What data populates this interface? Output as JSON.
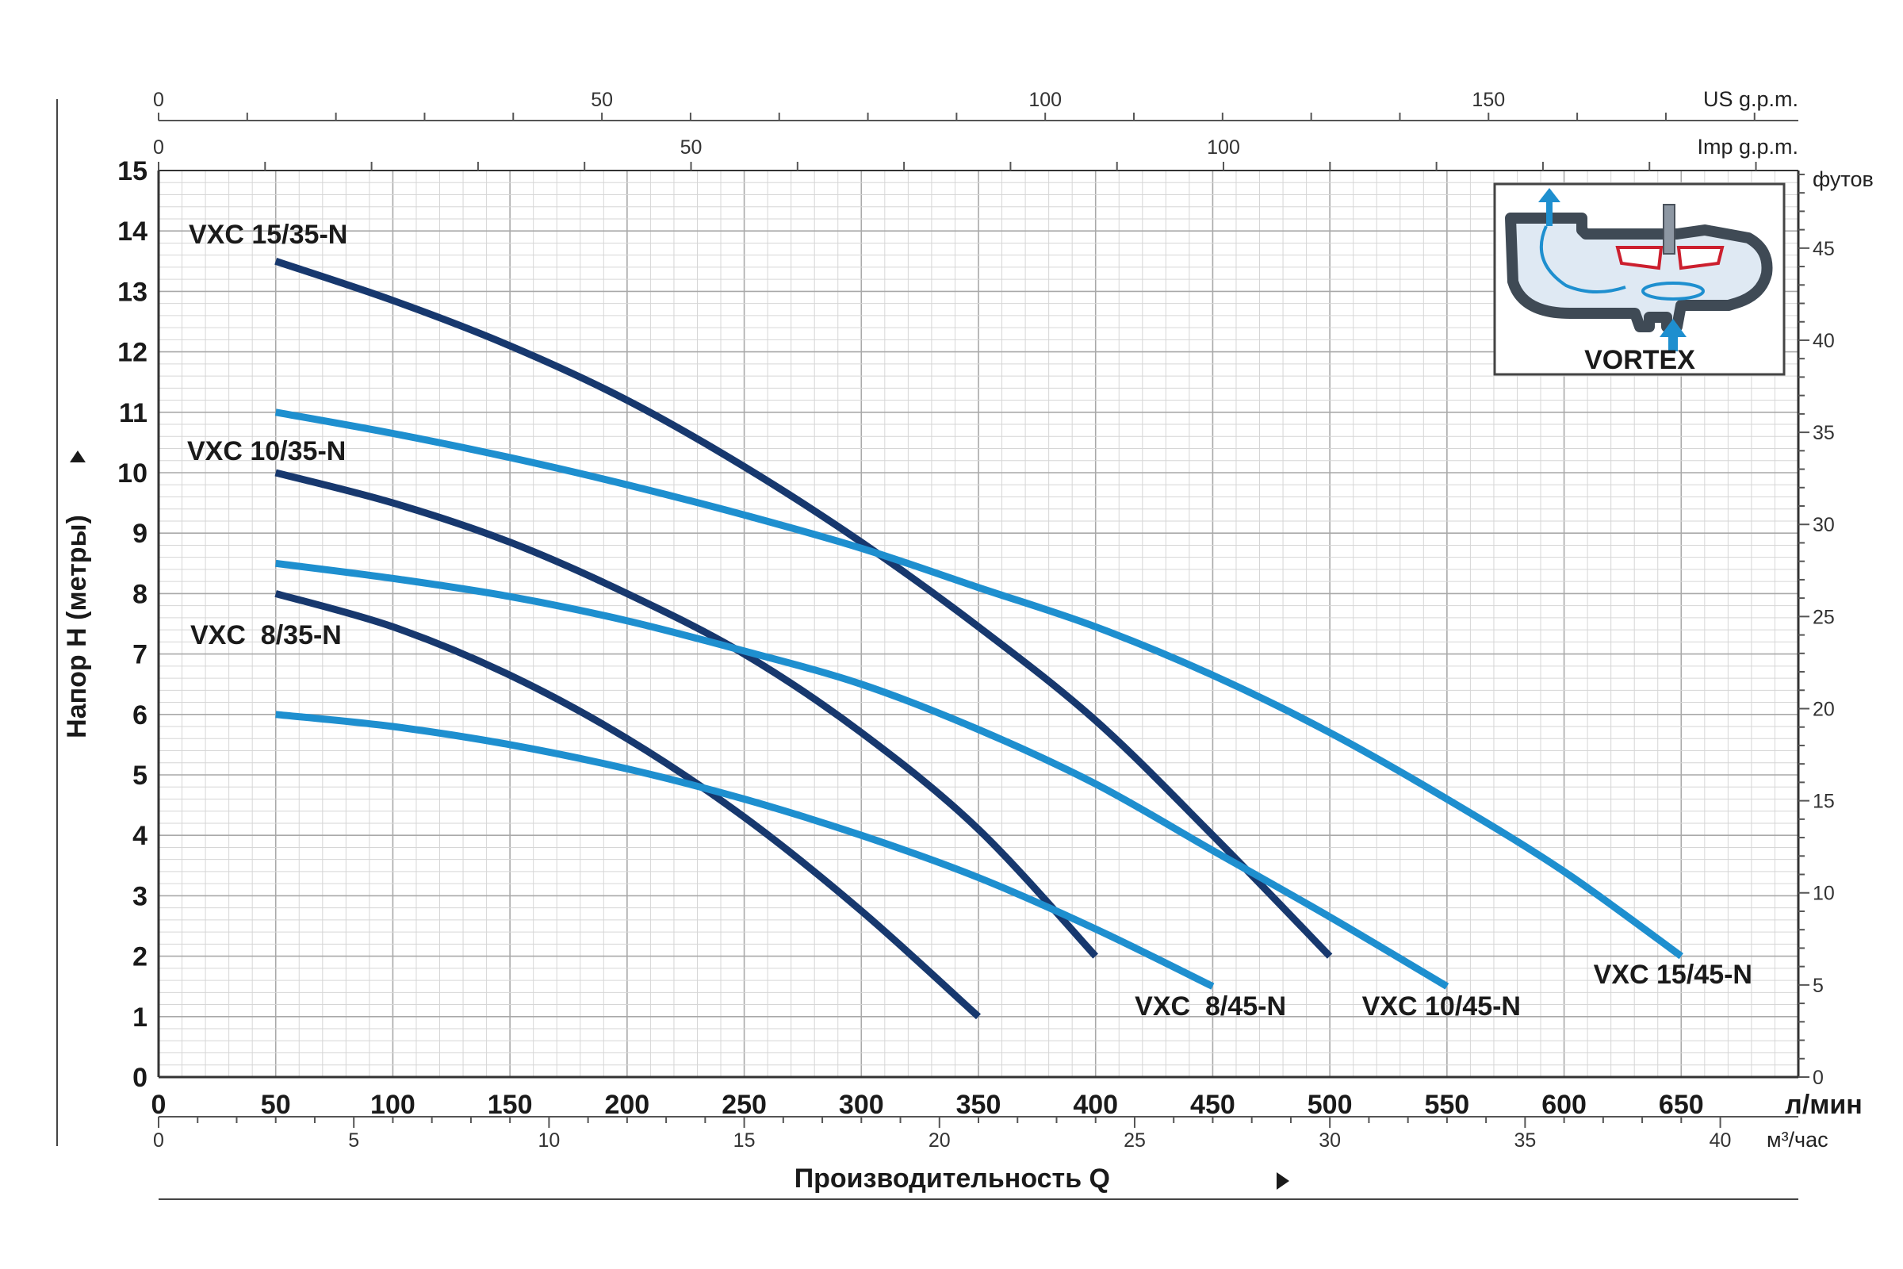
{
  "chart_data": {
    "type": "line",
    "xlabel": "Производительность  Q",
    "ylabel": "Напор H (метры)",
    "x_unit": "л/мин",
    "xlim": [
      0,
      700
    ],
    "ylim": [
      0,
      15
    ],
    "x_ticks": [
      "0",
      "50",
      "100",
      "150",
      "200",
      "250",
      "300",
      "350",
      "400",
      "450",
      "500",
      "550",
      "600",
      "650"
    ],
    "y_ticks": [
      "0",
      "1",
      "2",
      "3",
      "4",
      "5",
      "6",
      "7",
      "8",
      "9",
      "10",
      "11",
      "12",
      "13",
      "14",
      "15"
    ],
    "secondary_axes": {
      "top_us": {
        "unit": "US g.p.m.",
        "ticks": [
          "0",
          "50",
          "100",
          "150"
        ],
        "lmin_per_unit": 3.785
      },
      "top_imp": {
        "unit": "Imp g.p.m.",
        "ticks": [
          "0",
          "50",
          "100"
        ],
        "lmin_per_unit": 4.546
      },
      "bottom_m3": {
        "unit": "м³/час",
        "ticks": [
          "0",
          "5",
          "10",
          "15",
          "20",
          "25",
          "30",
          "35",
          "40"
        ],
        "lmin_per_unit": 16.667
      },
      "right_ft": {
        "unit": "футов",
        "ticks": [
          "0",
          "5",
          "10",
          "15",
          "20",
          "25",
          "30",
          "35",
          "40",
          "45"
        ],
        "m_per_unit": 0.3048
      }
    },
    "grid": true,
    "series": [
      {
        "name": "VXC 15/35-N",
        "color": "#17386e",
        "x": [
          50,
          100,
          150,
          200,
          250,
          300,
          350,
          400,
          450,
          500
        ],
        "y": [
          13.5,
          12.85,
          12.1,
          11.2,
          10.1,
          8.85,
          7.45,
          5.9,
          4.0,
          2.0
        ]
      },
      {
        "name": "VXC 10/35-N",
        "color": "#17386e",
        "x": [
          50,
          100,
          150,
          200,
          250,
          300,
          350,
          400
        ],
        "y": [
          10.0,
          9.5,
          8.85,
          8.0,
          7.0,
          5.7,
          4.1,
          2.0
        ]
      },
      {
        "name": "VXC  8/35-N",
        "color": "#17386e",
        "x": [
          50,
          100,
          150,
          200,
          250,
          300,
          350
        ],
        "y": [
          8.0,
          7.45,
          6.65,
          5.6,
          4.3,
          2.75,
          1.0
        ]
      },
      {
        "name": "VXC 15/45-N",
        "color": "#1e8fcf",
        "x": [
          50,
          100,
          150,
          200,
          250,
          300,
          350,
          400,
          450,
          500,
          550,
          600,
          650
        ],
        "y": [
          11.0,
          10.65,
          10.25,
          9.8,
          9.3,
          8.75,
          8.1,
          7.45,
          6.65,
          5.7,
          4.6,
          3.4,
          2.0
        ]
      },
      {
        "name": "VXC 10/45-N",
        "color": "#1e8fcf",
        "x": [
          50,
          100,
          150,
          200,
          250,
          300,
          350,
          400,
          450,
          500,
          550
        ],
        "y": [
          8.5,
          8.25,
          7.95,
          7.55,
          7.05,
          6.5,
          5.75,
          4.85,
          3.75,
          2.65,
          1.5
        ]
      },
      {
        "name": "VXC  8/45-N",
        "color": "#1e8fcf",
        "x": [
          50,
          100,
          150,
          200,
          250,
          300,
          350,
          400,
          450
        ],
        "y": [
          6.0,
          5.8,
          5.5,
          5.1,
          4.6,
          4.0,
          3.3,
          2.45,
          1.5
        ]
      }
    ]
  },
  "inset": {
    "title": "VORTEX"
  }
}
